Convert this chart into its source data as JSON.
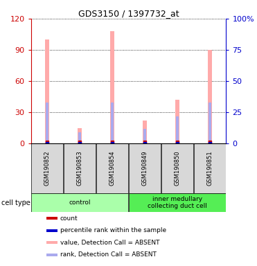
{
  "title": "GDS3150 / 1397732_at",
  "samples": [
    "GSM190852",
    "GSM190853",
    "GSM190854",
    "GSM190849",
    "GSM190850",
    "GSM190851"
  ],
  "groups": [
    {
      "label": "control",
      "color_light": "#ccffcc",
      "color_dark": "#66dd66",
      "indices": [
        0,
        1,
        2
      ]
    },
    {
      "label": "inner medullary\ncollecting duct cell",
      "color_light": "#ccffcc",
      "color_dark": "#33cc33",
      "indices": [
        3,
        4,
        5
      ]
    }
  ],
  "pink_bar_heights": [
    100,
    15,
    108,
    22,
    42,
    90
  ],
  "blue_bar_heights": [
    33,
    9,
    33,
    12,
    22,
    33
  ],
  "ylim_left": [
    0,
    120
  ],
  "ylim_right": [
    0,
    100
  ],
  "yticks_left": [
    0,
    30,
    60,
    90,
    120
  ],
  "yticks_right": [
    0,
    25,
    50,
    75,
    100
  ],
  "ytick_labels_right": [
    "0",
    "25",
    "50",
    "75",
    "100%"
  ],
  "left_axis_color": "#cc0000",
  "right_axis_color": "#0000cc",
  "pink_color": "#ffaaaa",
  "lightblue_color": "#aaaaee",
  "red_color": "#cc0000",
  "blue_color": "#0000cc",
  "bg_color": "#d8d8d8",
  "bar_width": 0.12,
  "blue_bar_width": 0.09,
  "group_colors": [
    "#aaffaa",
    "#55ee55"
  ],
  "legend_items": [
    {
      "color": "#cc0000",
      "label": "count"
    },
    {
      "color": "#0000cc",
      "label": "percentile rank within the sample"
    },
    {
      "color": "#ffaaaa",
      "label": "value, Detection Call = ABSENT"
    },
    {
      "color": "#aaaaee",
      "label": "rank, Detection Call = ABSENT"
    }
  ]
}
